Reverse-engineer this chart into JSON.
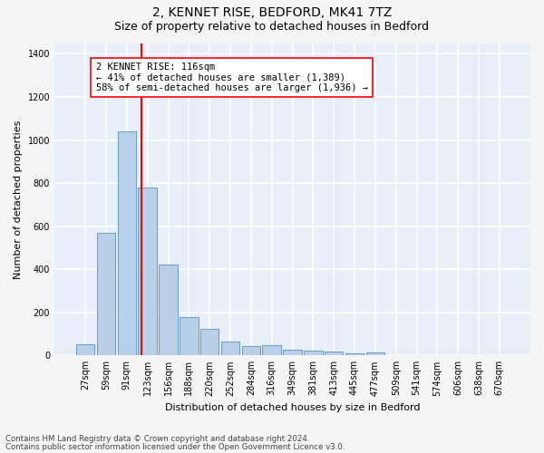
{
  "title1": "2, KENNET RISE, BEDFORD, MK41 7TZ",
  "title2": "Size of property relative to detached houses in Bedford",
  "xlabel": "Distribution of detached houses by size in Bedford",
  "ylabel": "Number of detached properties",
  "annotation_line1": "2 KENNET RISE: 116sqm",
  "annotation_line2": "← 41% of detached houses are smaller (1,389)",
  "annotation_line3": "58% of semi-detached houses are larger (1,936) →",
  "bar_labels": [
    "27sqm",
    "59sqm",
    "91sqm",
    "123sqm",
    "156sqm",
    "188sqm",
    "220sqm",
    "252sqm",
    "284sqm",
    "316sqm",
    "349sqm",
    "381sqm",
    "413sqm",
    "445sqm",
    "477sqm",
    "509sqm",
    "541sqm",
    "574sqm",
    "606sqm",
    "638sqm",
    "670sqm"
  ],
  "bar_values": [
    50,
    570,
    1040,
    780,
    420,
    180,
    125,
    65,
    45,
    48,
    25,
    22,
    17,
    10,
    12,
    0,
    0,
    0,
    0,
    0,
    0
  ],
  "bar_color": "#b8d0ea",
  "bar_edge_color": "#6699cc",
  "red_line_x": 2.72,
  "ylim": [
    0,
    1450
  ],
  "yticks": [
    0,
    200,
    400,
    600,
    800,
    1000,
    1200,
    1400
  ],
  "plot_bg_color": "#e8eef8",
  "fig_bg_color": "#f5f5f5",
  "grid_color": "#ffffff",
  "footnote1": "Contains HM Land Registry data © Crown copyright and database right 2024.",
  "footnote2": "Contains public sector information licensed under the Open Government Licence v3.0.",
  "title1_fontsize": 10,
  "title2_fontsize": 9,
  "xlabel_fontsize": 8,
  "ylabel_fontsize": 8,
  "tick_fontsize": 7,
  "annot_fontsize": 7.5
}
